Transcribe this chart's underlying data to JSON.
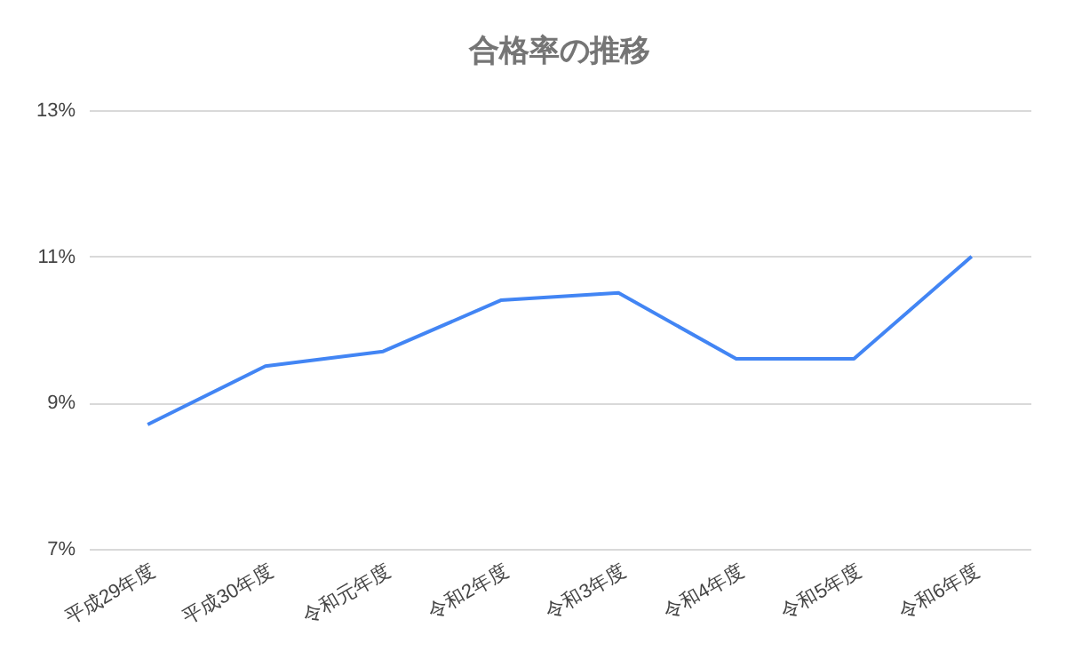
{
  "chart_data": {
    "type": "line",
    "title": "合格率の推移",
    "categories": [
      "平成29年度",
      "平成30年度",
      "令和元年度",
      "令和2年度",
      "令和3年度",
      "令和4年度",
      "令和5年度",
      "令和6年度"
    ],
    "series": [
      {
        "color": "#4285f4",
        "values": [
          8.7,
          9.5,
          9.7,
          10.4,
          10.5,
          9.6,
          9.6,
          11.0
        ]
      }
    ],
    "ylim": [
      7,
      13
    ],
    "yticks": [
      {
        "value": 7,
        "label": "7%"
      },
      {
        "value": 9,
        "label": "9%"
      },
      {
        "value": 11,
        "label": "11%"
      },
      {
        "value": 13,
        "label": "13%"
      }
    ],
    "grid": "y",
    "marker": "none",
    "line_style": "solid"
  }
}
